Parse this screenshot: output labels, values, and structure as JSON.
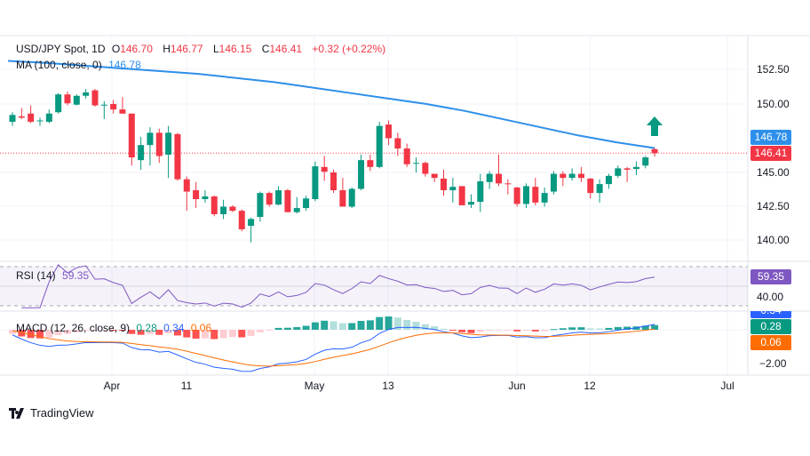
{
  "header": {
    "symbol": "USD/JPY Spot, 1D",
    "open_label": "O",
    "open": "146.70",
    "high_label": "H",
    "high": "146.77",
    "low_label": "L",
    "low": "146.15",
    "close_label": "C",
    "close": "146.41",
    "change": "+0.32 (+0.22%)"
  },
  "ma_legend": {
    "label": "MA (100, close, 0)",
    "value": "146.78"
  },
  "rsi_legend": {
    "label": "RSI (14)",
    "value": "59.35"
  },
  "macd_legend": {
    "label": "MACD (12, 26, close, 9)",
    "hist": "0.28",
    "macd": "0.34",
    "signal": "0.06"
  },
  "price_axis": [
    "152.50",
    "150.00",
    "145.00",
    "142.50",
    "140.00"
  ],
  "price_tags": {
    "ma": "146.78",
    "last": "146.41"
  },
  "rsi_axis": {
    "value_tag": "59.35",
    "level": "40.00"
  },
  "macd_axis": {
    "macd_tag": "0.34",
    "hist_tag": "0.28",
    "signal_tag": "0.06",
    "level": "−2.00"
  },
  "x_axis": [
    "Apr",
    "11",
    "May",
    "13",
    "Jun",
    "12",
    "Jul"
  ],
  "brand": "TradingView",
  "colors": {
    "up": "#089981",
    "down": "#F23645",
    "ma": "#2E8FEA",
    "rsi": "#7E57C2",
    "macd": "#2962FF",
    "signal": "#FF6D00"
  },
  "chart_data": {
    "type": "candlestick",
    "title": "USD/JPY Spot, 1D",
    "ylim": [
      139,
      154
    ],
    "candles": [
      [
        148.7,
        149.4,
        148.4,
        149.2
      ],
      [
        149.1,
        149.7,
        148.9,
        149.0
      ],
      [
        149.3,
        149.9,
        148.6,
        148.7
      ],
      [
        148.8,
        149.0,
        148.4,
        148.8
      ],
      [
        148.7,
        149.6,
        148.6,
        149.3
      ],
      [
        149.4,
        150.8,
        149.3,
        150.7
      ],
      [
        150.7,
        150.9,
        149.9,
        150.05
      ],
      [
        149.95,
        150.7,
        149.9,
        150.6
      ],
      [
        150.6,
        151.1,
        150.4,
        150.85
      ],
      [
        151.0,
        151.1,
        149.8,
        149.9
      ],
      [
        149.95,
        150.2,
        148.9,
        149.95
      ],
      [
        150.0,
        150.3,
        149.3,
        149.6
      ],
      [
        149.6,
        150.5,
        149.3,
        149.3
      ],
      [
        149.3,
        149.3,
        145.5,
        146.1
      ],
      [
        145.9,
        147.6,
        145.2,
        147.0
      ],
      [
        147.0,
        148.3,
        145.5,
        147.9
      ],
      [
        147.9,
        148.2,
        145.7,
        146.2
      ],
      [
        146.3,
        148.4,
        144.6,
        147.9
      ],
      [
        147.8,
        147.9,
        144.4,
        144.5
      ],
      [
        144.5,
        144.7,
        142.2,
        143.6
      ],
      [
        143.7,
        144.3,
        142.4,
        143.05
      ],
      [
        143.05,
        143.7,
        142.8,
        143.25
      ],
      [
        143.25,
        143.3,
        141.8,
        141.95
      ],
      [
        141.95,
        143.0,
        141.6,
        142.5
      ],
      [
        142.5,
        142.6,
        142.1,
        142.2
      ],
      [
        142.2,
        142.3,
        140.7,
        140.85
      ],
      [
        141.1,
        141.7,
        139.9,
        141.6
      ],
      [
        141.75,
        143.6,
        141.4,
        143.5
      ],
      [
        143.5,
        143.6,
        142.5,
        142.65
      ],
      [
        142.65,
        144.0,
        142.6,
        143.7
      ],
      [
        143.7,
        143.8,
        142.1,
        142.1
      ],
      [
        142.1,
        143.2,
        142.0,
        142.4
      ],
      [
        142.4,
        143.3,
        142.2,
        143.1
      ],
      [
        143.05,
        145.8,
        142.9,
        145.45
      ],
      [
        145.4,
        146.2,
        144.4,
        145.05
      ],
      [
        145.0,
        145.2,
        143.5,
        143.7
      ],
      [
        143.7,
        144.6,
        142.5,
        142.5
      ],
      [
        142.5,
        143.9,
        142.4,
        143.8
      ],
      [
        143.8,
        146.3,
        143.7,
        145.9
      ],
      [
        145.9,
        146.3,
        145.1,
        145.4
      ],
      [
        145.4,
        148.7,
        145.3,
        148.4
      ],
      [
        148.5,
        148.8,
        147.0,
        147.5
      ],
      [
        147.5,
        147.9,
        146.2,
        146.75
      ],
      [
        146.75,
        147.1,
        145.4,
        145.6
      ],
      [
        145.7,
        146.1,
        145.0,
        145.7
      ],
      [
        145.7,
        145.8,
        144.7,
        144.9
      ],
      [
        144.9,
        144.9,
        144.3,
        144.6
      ],
      [
        144.55,
        145.2,
        143.3,
        143.7
      ],
      [
        143.7,
        144.6,
        142.8,
        143.95
      ],
      [
        144.0,
        144.0,
        142.6,
        142.6
      ],
      [
        142.65,
        143.4,
        142.4,
        142.85
      ],
      [
        142.85,
        144.9,
        142.1,
        144.35
      ],
      [
        144.3,
        145.1,
        143.8,
        144.9
      ],
      [
        144.9,
        146.3,
        144.0,
        144.2
      ],
      [
        144.2,
        144.5,
        143.4,
        144.15
      ],
      [
        143.9,
        143.95,
        142.5,
        142.7
      ],
      [
        142.7,
        144.2,
        142.4,
        144.0
      ],
      [
        143.95,
        144.6,
        142.6,
        142.8
      ],
      [
        142.8,
        143.9,
        142.5,
        143.5
      ],
      [
        143.6,
        145.1,
        143.4,
        144.9
      ],
      [
        144.9,
        145.1,
        144.0,
        144.6
      ],
      [
        144.6,
        145.3,
        144.4,
        144.9
      ],
      [
        144.9,
        145.4,
        144.3,
        144.6
      ],
      [
        144.55,
        144.6,
        143.1,
        143.5
      ],
      [
        143.5,
        144.5,
        142.8,
        144.15
      ],
      [
        144.15,
        144.9,
        143.8,
        144.75
      ],
      [
        144.75,
        145.5,
        144.6,
        145.3
      ],
      [
        145.3,
        145.4,
        144.3,
        145.2
      ],
      [
        145.25,
        145.8,
        144.8,
        145.4
      ],
      [
        145.5,
        146.2,
        145.3,
        146.1
      ],
      [
        146.7,
        146.77,
        146.15,
        146.41
      ]
    ],
    "ma100": [
      153.15,
      153.0,
      152.8,
      152.6,
      152.4,
      152.2,
      151.9,
      151.6,
      151.2,
      150.8,
      150.4,
      150.0,
      149.5,
      148.9,
      148.3,
      147.7,
      147.2,
      146.78
    ],
    "rsi_levels": [
      70,
      50,
      30
    ],
    "macd_ylim": [
      -2.5,
      1.2
    ]
  }
}
